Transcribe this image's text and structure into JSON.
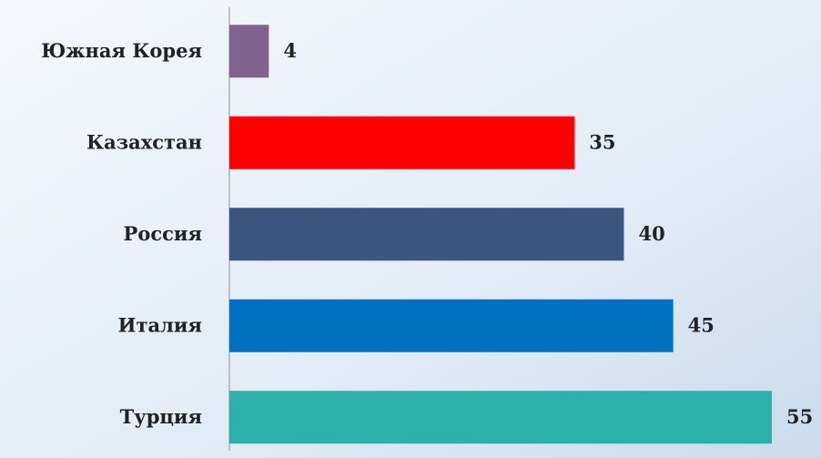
{
  "chart_data": {
    "type": "bar",
    "orientation": "horizontal",
    "categories": [
      "Южная Корея",
      "Казахстан",
      "Россия",
      "Италия",
      "Турция"
    ],
    "values": [
      4,
      35,
      40,
      45,
      55
    ],
    "colors": [
      "#80638f",
      "#ff0000",
      "#3b5480",
      "#0070c0",
      "#2eb0aa"
    ]
  }
}
